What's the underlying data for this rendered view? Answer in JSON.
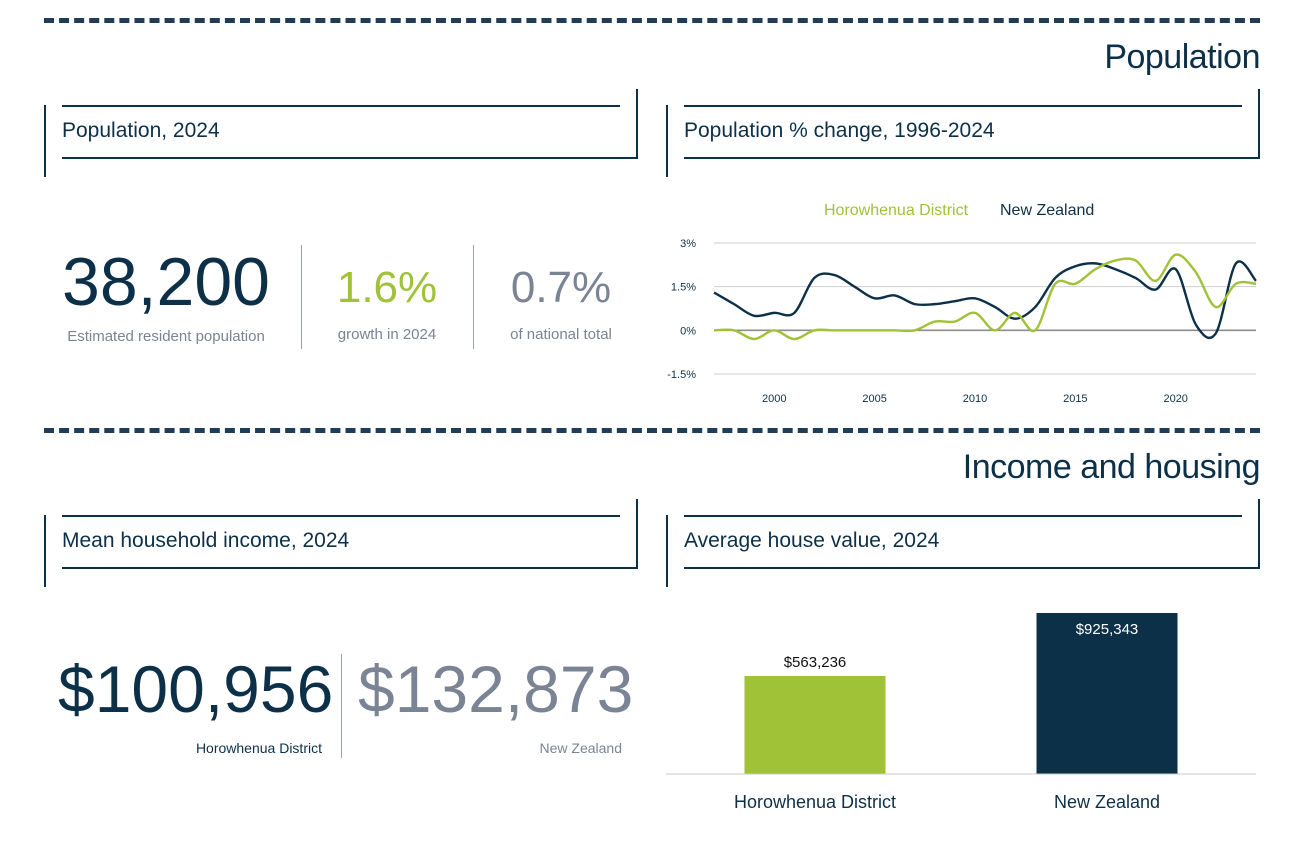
{
  "sections": {
    "population_title": "Population",
    "income_title": "Income and housing"
  },
  "cards": {
    "population_2024": "Population, 2024",
    "population_change": "Population % change, 1996-2024",
    "mean_income": "Mean household income, 2024",
    "house_value": "Average house value, 2024"
  },
  "population_stats": {
    "value": "38,200",
    "value_caption": "Estimated resident population",
    "growth": "1.6%",
    "growth_caption": "growth in 2024",
    "share": "0.7%",
    "share_caption": "of national total"
  },
  "income_stats": {
    "district_value": "$100,956",
    "district_caption": "Horowhenua District",
    "nz_value": "$132,873",
    "nz_caption": "New Zealand"
  },
  "colors": {
    "navy": "#0d3049",
    "green": "#a0c236",
    "grey": "#7a8494"
  },
  "chart_data": [
    {
      "type": "line",
      "title": "",
      "xlabel": "",
      "ylabel": "",
      "xlim": [
        1997,
        2024
      ],
      "ylim": [
        -1.5,
        3
      ],
      "x_ticks": [
        2000,
        2005,
        2010,
        2015,
        2020
      ],
      "y_ticks": [
        "3%",
        "1.5%",
        "0%",
        "-1.5%"
      ],
      "grid": true,
      "legend_position": "top",
      "x": [
        1997,
        1998,
        1999,
        2000,
        2001,
        2002,
        2003,
        2004,
        2005,
        2006,
        2007,
        2008,
        2009,
        2010,
        2011,
        2012,
        2013,
        2014,
        2015,
        2016,
        2017,
        2018,
        2019,
        2020,
        2021,
        2022,
        2023,
        2024
      ],
      "series": [
        {
          "name": "Horowhenua District",
          "color": "#a0c236",
          "values": [
            0.0,
            0.0,
            -0.3,
            0.0,
            -0.3,
            0.0,
            0.0,
            0.0,
            0.0,
            0.0,
            0.0,
            0.3,
            0.3,
            0.6,
            0.0,
            0.6,
            0.0,
            1.6,
            1.6,
            2.1,
            2.4,
            2.4,
            1.7,
            2.6,
            2.0,
            0.8,
            1.6,
            1.6
          ]
        },
        {
          "name": "New Zealand",
          "color": "#0d3049",
          "values": [
            1.3,
            0.9,
            0.5,
            0.6,
            0.6,
            1.8,
            1.9,
            1.5,
            1.1,
            1.2,
            0.9,
            0.9,
            1.0,
            1.1,
            0.8,
            0.4,
            0.8,
            1.8,
            2.2,
            2.3,
            2.1,
            1.8,
            1.4,
            2.1,
            0.2,
            -0.1,
            2.3,
            1.7
          ]
        }
      ]
    },
    {
      "type": "bar",
      "title": "",
      "xlabel": "",
      "ylabel": "",
      "ylim": [
        0,
        925343
      ],
      "categories": [
        "Horowhenua District",
        "New Zealand"
      ],
      "values": [
        563236,
        925343
      ],
      "labels": [
        "$563,236",
        "$925,343"
      ],
      "colors": [
        "#a0c236",
        "#0d3049"
      ]
    }
  ]
}
